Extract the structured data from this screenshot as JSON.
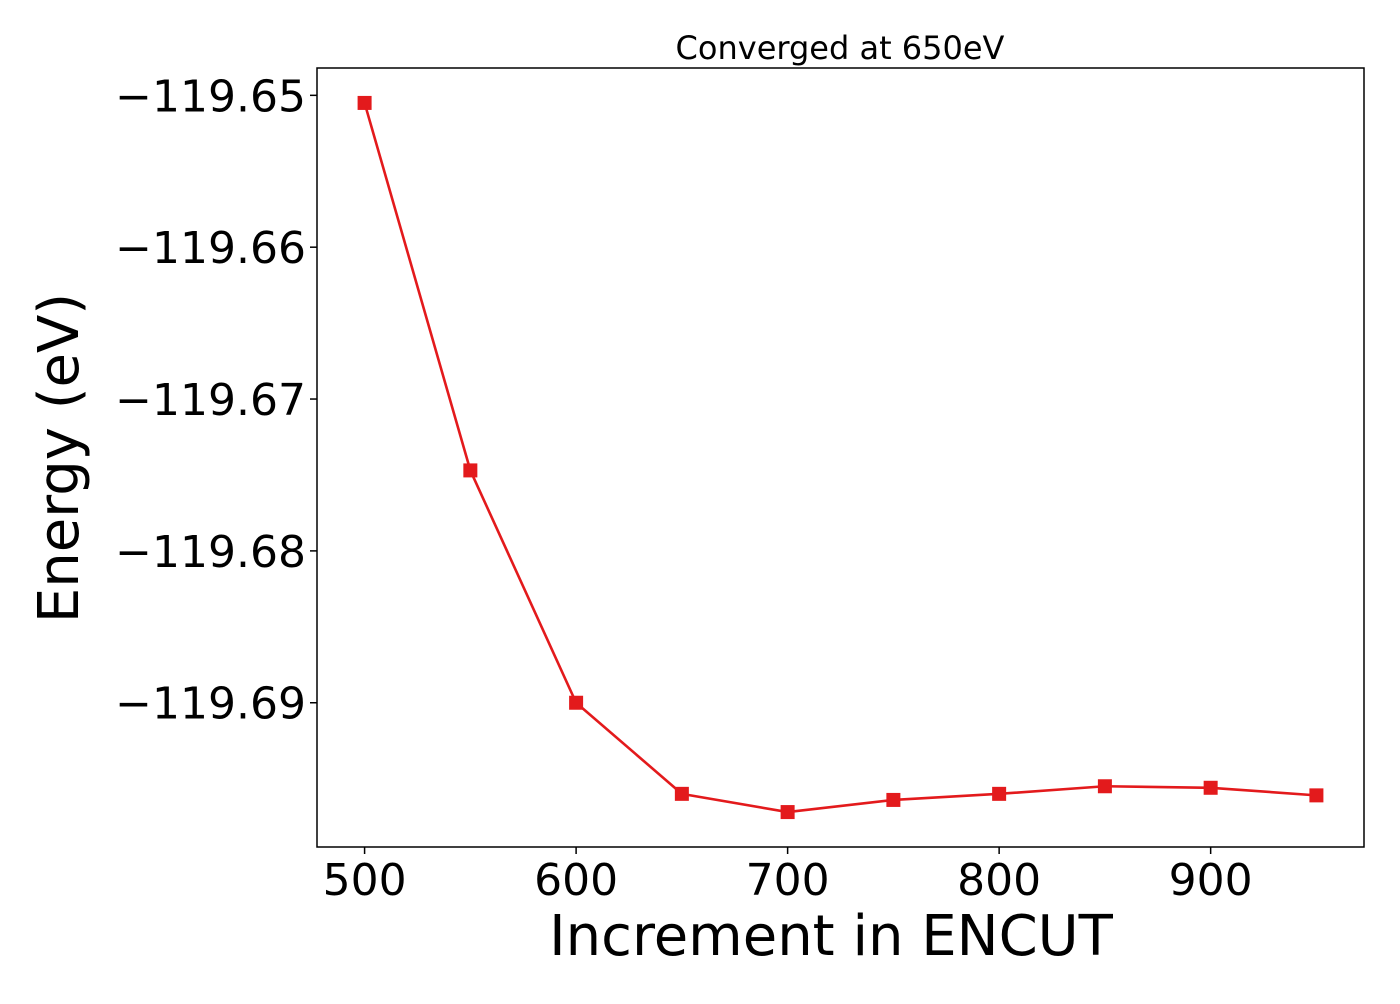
{
  "chart_data": {
    "type": "line",
    "title": "Converged at 650eV",
    "xlabel": "Increment in ENCUT",
    "ylabel": "Energy (eV)",
    "x": [
      500,
      550,
      600,
      650,
      700,
      750,
      800,
      850,
      900,
      950
    ],
    "series": [
      {
        "values": [
          -119.6505,
          -119.6747,
          -119.69,
          -119.696,
          -119.6972,
          -119.6964,
          -119.696,
          -119.6955,
          -119.6956,
          -119.6961
        ],
        "color": "#e31a1c",
        "marker": "square"
      }
    ],
    "xlim": [
      477.5,
      972.5
    ],
    "ylim": [
      -119.6995,
      -119.6482
    ],
    "xticks": [
      500,
      600,
      700,
      800,
      900
    ],
    "xtick_labels": [
      "500",
      "600",
      "700",
      "800",
      "900"
    ],
    "yticks": [
      -119.65,
      -119.66,
      -119.67,
      -119.68,
      -119.69
    ],
    "ytick_labels": [
      "−119.65",
      "−119.66",
      "−119.67",
      "−119.68",
      "−119.69"
    ],
    "grid": false,
    "legend": "none"
  }
}
